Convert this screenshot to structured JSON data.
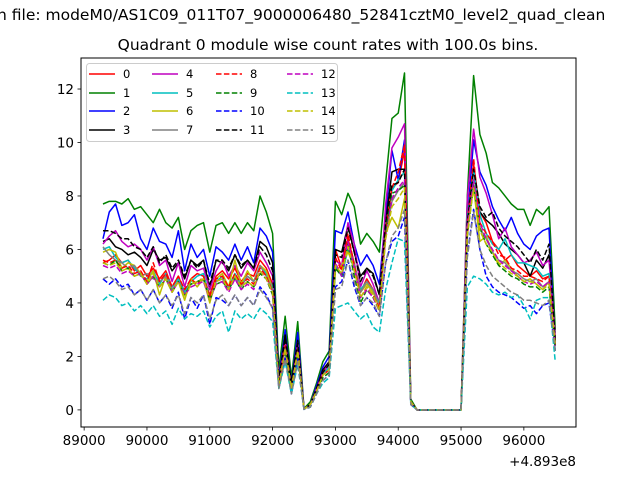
{
  "chart_data": {
    "type": "line",
    "title_line1": "n file: modeM0/AS1C09_011T07_9000006480_52841cztM0_level2_quad_clean",
    "title": "Quadrant 0 module wise count rates with 100.0s bins.",
    "xlabel": "",
    "ylabel": "",
    "x_offset_label": "+4.893e8",
    "x_start": 89300,
    "x_step": 100,
    "xlim": [
      88950,
      96830
    ],
    "ylim": [
      -0.64,
      13.16
    ],
    "xticks": [
      89000,
      90000,
      91000,
      92000,
      93000,
      94000,
      95000,
      96000
    ],
    "yticks": [
      0,
      2,
      4,
      6,
      8,
      10,
      12
    ],
    "grid": false,
    "legend_placement": "top-left",
    "legend_columns": 4,
    "series": [
      {
        "name": "0",
        "color": "#ff0000",
        "dash": false,
        "values": [
          5.5,
          5.6,
          5.8,
          5.5,
          5.6,
          5.2,
          5.4,
          5.0,
          5.3,
          4.9,
          5.2,
          4.6,
          5.0,
          4.4,
          4.9,
          5.1,
          5.0,
          4.3,
          5.0,
          5.2,
          4.9,
          5.3,
          4.8,
          5.1,
          5.0,
          5.6,
          5.3,
          4.7,
          1.0,
          2.6,
          0.9,
          2.4,
          0.03,
          0.2,
          0.8,
          1.4,
          1.7,
          6.0,
          5.3,
          6.4,
          5.5,
          4.4,
          4.9,
          4.5,
          4.0,
          6.5,
          8.3,
          8.5,
          9.7,
          0.3,
          0,
          0,
          0,
          0,
          0,
          0,
          0,
          0,
          6.5,
          9.2,
          7.4,
          7.0,
          6.3,
          6.0,
          5.6,
          5.8,
          5.4,
          5.2,
          5.0,
          5.2,
          4.9,
          5.0,
          2.5
        ]
      },
      {
        "name": "1",
        "color": "#008000",
        "dash": false,
        "values": [
          7.7,
          7.8,
          7.8,
          7.7,
          7.9,
          7.5,
          7.6,
          7.3,
          7.0,
          7.5,
          7.0,
          6.8,
          7.2,
          6.0,
          6.7,
          6.9,
          7.0,
          5.9,
          6.9,
          7.0,
          6.6,
          7.0,
          6.6,
          7.0,
          6.7,
          8.0,
          7.4,
          6.6,
          1.5,
          3.5,
          1.2,
          3.3,
          0.05,
          0.3,
          1.0,
          1.8,
          2.2,
          7.8,
          7.3,
          8.1,
          7.6,
          6.2,
          6.6,
          6.3,
          5.9,
          8.5,
          10.9,
          11.1,
          12.6,
          0.4,
          0,
          0,
          0,
          0,
          0,
          0,
          0,
          0,
          8.0,
          12.5,
          10.3,
          9.6,
          8.5,
          8.3,
          8.0,
          7.7,
          7.5,
          7.5,
          6.9,
          7.5,
          7.3,
          7.6,
          3.0
        ]
      },
      {
        "name": "2",
        "color": "#0000ff",
        "dash": false,
        "values": [
          6.4,
          7.4,
          7.7,
          6.9,
          7.0,
          7.3,
          6.4,
          6.0,
          6.8,
          6.3,
          6.2,
          5.7,
          6.7,
          5.2,
          6.2,
          5.7,
          6.0,
          5.0,
          6.1,
          5.9,
          5.6,
          6.2,
          5.6,
          6.1,
          5.5,
          6.8,
          6.5,
          5.9,
          1.2,
          3.0,
          1.0,
          2.9,
          0.04,
          0.2,
          0.9,
          1.6,
          2.0,
          6.7,
          6.6,
          7.4,
          6.2,
          5.4,
          5.8,
          5.4,
          4.7,
          7.3,
          9.7,
          8.6,
          10.1,
          0.3,
          0,
          0,
          0,
          0,
          0,
          0,
          0,
          0,
          7.1,
          10.1,
          8.9,
          8.4,
          7.6,
          7.1,
          6.7,
          7.2,
          6.6,
          6.2,
          6.0,
          6.5,
          6.7,
          6.8,
          2.4
        ]
      },
      {
        "name": "3",
        "color": "#000000",
        "dash": false,
        "values": [
          6.3,
          6.4,
          6.1,
          6.0,
          5.8,
          5.9,
          5.7,
          5.4,
          6.0,
          5.6,
          5.7,
          5.2,
          5.5,
          4.9,
          5.6,
          5.4,
          5.6,
          4.5,
          5.6,
          5.5,
          5.2,
          5.8,
          5.3,
          5.6,
          5.3,
          6.3,
          6.1,
          5.5,
          1.1,
          2.8,
          1.0,
          2.6,
          0.03,
          0.2,
          0.8,
          1.5,
          1.8,
          6.0,
          5.9,
          6.9,
          5.9,
          5.0,
          5.3,
          5.1,
          4.3,
          7.0,
          8.9,
          9.0,
          9.0,
          0.3,
          0,
          0,
          0,
          0,
          0,
          0,
          0,
          0,
          6.8,
          9.0,
          7.4,
          7.1,
          6.9,
          6.6,
          6.2,
          6.0,
          5.8,
          5.5,
          5.0,
          5.6,
          5.3,
          5.8,
          2.6
        ]
      },
      {
        "name": "4",
        "color": "#bf00bf",
        "dash": false,
        "values": [
          6.2,
          6.5,
          6.7,
          6.3,
          6.1,
          6.2,
          6.0,
          5.6,
          6.1,
          5.4,
          5.6,
          4.8,
          5.5,
          4.6,
          5.4,
          5.2,
          5.3,
          4.5,
          5.2,
          5.6,
          5.0,
          5.4,
          5.0,
          5.5,
          5.2,
          5.9,
          5.5,
          5.0,
          1.1,
          2.6,
          0.8,
          2.5,
          0.03,
          0.2,
          0.8,
          1.4,
          1.7,
          5.6,
          5.4,
          7.0,
          6.2,
          4.6,
          5.2,
          4.7,
          4.0,
          7.7,
          9.8,
          10.2,
          10.7,
          0.3,
          0,
          0,
          0,
          0,
          0,
          0,
          0,
          0,
          7.9,
          10.5,
          8.7,
          8.1,
          7.3,
          6.4,
          6.8,
          6.1,
          5.8,
          5.5,
          5.6,
          5.9,
          5.4,
          5.6,
          2.8
        ]
      },
      {
        "name": "5",
        "color": "#00bfbf",
        "dash": false,
        "values": [
          6.0,
          6.1,
          5.7,
          5.5,
          5.6,
          5.3,
          5.0,
          4.9,
          5.2,
          4.7,
          5.1,
          4.6,
          4.9,
          4.4,
          4.8,
          5.0,
          5.1,
          4.2,
          4.8,
          5.0,
          4.6,
          5.1,
          4.7,
          5.0,
          4.8,
          5.4,
          5.1,
          4.6,
          1.0,
          2.4,
          0.8,
          2.3,
          0.03,
          0.2,
          0.7,
          1.3,
          1.6,
          5.4,
          5.0,
          6.0,
          5.2,
          4.5,
          4.8,
          4.4,
          4.0,
          6.9,
          8.2,
          8.6,
          8.9,
          0.3,
          0,
          0,
          0,
          0,
          0,
          0,
          0,
          0,
          7.2,
          9.0,
          7.3,
          6.6,
          6.2,
          6.0,
          6.4,
          5.8,
          5.5,
          5.5,
          5.4,
          5.3,
          5.0,
          5.1,
          2.2
        ]
      },
      {
        "name": "6",
        "color": "#bfbf00",
        "dash": false,
        "values": [
          5.9,
          6.0,
          5.9,
          5.3,
          5.5,
          5.4,
          5.1,
          4.8,
          5.2,
          4.3,
          5.0,
          4.5,
          4.8,
          4.1,
          4.9,
          4.6,
          4.9,
          4.0,
          4.9,
          5.1,
          4.6,
          5.6,
          4.7,
          5.2,
          4.8,
          5.4,
          5.2,
          4.5,
          1.0,
          2.3,
          0.8,
          2.2,
          0.03,
          0.2,
          0.7,
          1.3,
          1.5,
          5.2,
          5.4,
          5.9,
          5.4,
          4.4,
          4.7,
          4.4,
          3.8,
          6.6,
          7.2,
          6.8,
          7.9,
          0.3,
          0,
          0,
          0,
          0,
          0,
          0,
          0,
          0,
          6.8,
          8.3,
          6.3,
          6.5,
          5.9,
          5.4,
          5.6,
          5.3,
          5.0,
          4.8,
          4.9,
          4.7,
          4.5,
          4.8,
          2.6
        ]
      },
      {
        "name": "7",
        "color": "#808080",
        "dash": false,
        "values": [
          6.1,
          5.8,
          5.6,
          5.5,
          5.3,
          5.4,
          5.0,
          5.1,
          4.9,
          4.8,
          5.0,
          4.5,
          4.8,
          4.3,
          4.7,
          4.8,
          4.9,
          4.2,
          4.8,
          4.9,
          4.6,
          5.0,
          4.6,
          5.0,
          4.8,
          5.4,
          5.0,
          4.5,
          0.9,
          2.3,
          0.8,
          2.2,
          0.03,
          0.2,
          0.7,
          1.3,
          1.5,
          5.3,
          5.1,
          6.2,
          5.5,
          4.4,
          4.8,
          4.5,
          3.9,
          6.5,
          7.8,
          8.2,
          8.5,
          0.3,
          0,
          0,
          0,
          0,
          0,
          0,
          0,
          0,
          6.9,
          8.5,
          6.8,
          6.4,
          5.9,
          5.6,
          5.5,
          5.2,
          5.1,
          4.9,
          4.8,
          4.9,
          4.6,
          4.8,
          2.5
        ]
      },
      {
        "name": "8",
        "color": "#ff0000",
        "dash": true,
        "values": [
          5.6,
          5.5,
          5.6,
          5.3,
          5.4,
          5.1,
          5.2,
          4.8,
          5.5,
          4.8,
          5.1,
          4.6,
          5.0,
          4.5,
          4.9,
          4.7,
          5.0,
          4.2,
          4.9,
          5.0,
          4.6,
          5.1,
          4.7,
          4.9,
          4.7,
          5.3,
          5.0,
          4.4,
          1.0,
          2.4,
          0.8,
          2.3,
          0.03,
          0.2,
          0.7,
          1.3,
          1.5,
          5.7,
          5.2,
          6.6,
          5.4,
          4.2,
          4.6,
          4.3,
          3.8,
          6.8,
          8.3,
          8.9,
          9.9,
          0.3,
          0,
          0,
          0,
          0,
          0,
          0,
          0,
          0,
          7.0,
          9.4,
          7.0,
          6.6,
          6.3,
          5.8,
          5.7,
          5.3,
          5.2,
          5.0,
          5.0,
          4.9,
          4.8,
          5.0,
          2.4
        ]
      },
      {
        "name": "9",
        "color": "#008000",
        "dash": true,
        "values": [
          5.5,
          5.4,
          5.6,
          5.2,
          5.3,
          5.0,
          5.1,
          4.7,
          5.0,
          4.6,
          4.9,
          4.4,
          4.8,
          4.3,
          4.7,
          4.8,
          4.9,
          4.1,
          4.7,
          4.8,
          4.5,
          4.9,
          4.5,
          4.8,
          4.6,
          5.1,
          4.9,
          4.3,
          0.9,
          2.2,
          0.8,
          2.1,
          0.03,
          0.2,
          0.7,
          1.2,
          1.4,
          5.3,
          5.0,
          6.2,
          5.0,
          4.0,
          4.5,
          4.2,
          3.7,
          6.6,
          8.1,
          8.2,
          8.4,
          0.3,
          0,
          0,
          0,
          0,
          0,
          0,
          0,
          0,
          6.5,
          8.4,
          6.8,
          6.2,
          5.8,
          5.4,
          5.2,
          5.0,
          4.9,
          4.7,
          4.6,
          4.6,
          4.4,
          4.6,
          2.3
        ]
      },
      {
        "name": "10",
        "color": "#0000ff",
        "dash": true,
        "values": [
          4.9,
          4.7,
          4.9,
          4.6,
          4.7,
          4.3,
          4.5,
          4.1,
          4.5,
          4.0,
          4.3,
          3.8,
          4.4,
          3.4,
          4.2,
          3.8,
          4.3,
          3.2,
          4.2,
          4.1,
          3.9,
          4.3,
          3.9,
          4.2,
          3.9,
          4.6,
          4.3,
          3.8,
          0.8,
          2.0,
          0.6,
          1.9,
          0.02,
          0.1,
          0.6,
          1.1,
          1.3,
          4.6,
          4.8,
          5.6,
          4.6,
          3.9,
          4.2,
          3.9,
          3.5,
          5.5,
          6.3,
          6.5,
          7.2,
          0.2,
          0,
          0,
          0,
          0,
          0,
          0,
          0,
          0,
          5.8,
          7.5,
          6.0,
          5.0,
          4.6,
          4.4,
          4.3,
          4.2,
          4.0,
          3.8,
          3.9,
          3.6,
          3.9,
          4.0,
          2.2
        ]
      },
      {
        "name": "11",
        "color": "#000000",
        "dash": true,
        "values": [
          6.7,
          6.7,
          6.6,
          6.4,
          6.4,
          6.1,
          6.0,
          5.7,
          6.1,
          5.5,
          5.8,
          5.3,
          5.6,
          5.0,
          5.6,
          5.3,
          5.6,
          4.7,
          5.6,
          5.6,
          5.3,
          5.8,
          5.4,
          5.6,
          5.3,
          6.1,
          5.8,
          5.2,
          1.1,
          2.7,
          0.9,
          2.5,
          0.03,
          0.2,
          0.8,
          1.4,
          1.7,
          5.8,
          5.7,
          6.8,
          5.9,
          4.8,
          5.3,
          5.0,
          4.3,
          7.0,
          8.4,
          8.5,
          9.0,
          0.3,
          0,
          0,
          0,
          0,
          0,
          0,
          0,
          0,
          7.0,
          9.0,
          7.6,
          7.2,
          7.4,
          6.8,
          6.5,
          6.3,
          6.1,
          5.8,
          5.5,
          6.0,
          5.6,
          6.2,
          2.6
        ]
      },
      {
        "name": "12",
        "color": "#bf00bf",
        "dash": true,
        "values": [
          5.4,
          5.3,
          5.4,
          5.1,
          5.2,
          5.0,
          5.1,
          4.7,
          5.0,
          4.6,
          4.9,
          4.4,
          4.8,
          4.3,
          4.6,
          4.7,
          4.8,
          4.1,
          4.7,
          4.8,
          4.4,
          4.9,
          4.5,
          4.7,
          4.5,
          5.2,
          4.9,
          4.4,
          0.9,
          2.3,
          0.8,
          2.2,
          0.03,
          0.2,
          0.7,
          1.3,
          1.5,
          5.5,
          5.0,
          6.3,
          5.3,
          4.2,
          4.5,
          4.2,
          3.7,
          6.4,
          7.9,
          8.3,
          8.6,
          0.3,
          0,
          0,
          0,
          0,
          0,
          0,
          0,
          0,
          6.8,
          8.6,
          7.0,
          6.4,
          6.0,
          5.6,
          5.4,
          5.2,
          5.0,
          4.8,
          4.7,
          4.8,
          4.6,
          4.8,
          2.4
        ]
      },
      {
        "name": "13",
        "color": "#00bfbf",
        "dash": true,
        "values": [
          4.1,
          4.3,
          4.2,
          3.9,
          4.0,
          3.7,
          3.9,
          3.6,
          3.9,
          3.5,
          3.7,
          3.2,
          3.8,
          3.4,
          3.6,
          3.5,
          3.7,
          3.1,
          3.5,
          3.7,
          2.9,
          3.7,
          3.4,
          3.6,
          3.4,
          3.8,
          3.6,
          3.3,
          0.8,
          1.8,
          0.6,
          1.7,
          0.02,
          0.1,
          0.6,
          1.0,
          1.2,
          3.8,
          3.9,
          4.0,
          3.7,
          3.4,
          3.6,
          3.1,
          2.9,
          4.5,
          5.5,
          6.4,
          6.3,
          0.2,
          0,
          0,
          0,
          0,
          0,
          0,
          0,
          0,
          4.6,
          5.0,
          4.9,
          4.7,
          4.4,
          4.3,
          4.4,
          4.2,
          4.3,
          3.9,
          3.4,
          4.1,
          4.2,
          4.2,
          1.8
        ]
      },
      {
        "name": "14",
        "color": "#bfbf00",
        "dash": true,
        "values": [
          5.5,
          5.4,
          5.5,
          5.2,
          5.3,
          5.0,
          5.1,
          4.7,
          5.1,
          4.6,
          4.9,
          4.4,
          4.8,
          4.2,
          4.7,
          4.8,
          4.9,
          4.1,
          4.8,
          4.9,
          4.5,
          5.0,
          4.6,
          4.8,
          4.6,
          5.2,
          4.9,
          4.4,
          0.9,
          2.3,
          0.8,
          2.2,
          0.03,
          0.2,
          0.7,
          1.3,
          1.5,
          5.4,
          5.1,
          6.1,
          5.2,
          4.2,
          4.6,
          4.3,
          3.7,
          6.4,
          7.6,
          7.9,
          8.3,
          0.3,
          0,
          0,
          0,
          0,
          0,
          0,
          0,
          0,
          6.6,
          8.3,
          6.7,
          6.2,
          5.9,
          5.5,
          5.3,
          5.1,
          5.0,
          4.8,
          4.8,
          4.7,
          4.5,
          4.7,
          2.4
        ]
      },
      {
        "name": "15",
        "color": "#808080",
        "dash": true,
        "values": [
          4.9,
          5.0,
          4.8,
          4.5,
          4.6,
          4.3,
          4.5,
          4.1,
          4.5,
          4.0,
          4.3,
          3.9,
          4.3,
          3.6,
          4.2,
          4.0,
          4.3,
          3.4,
          4.1,
          4.3,
          3.9,
          4.3,
          3.9,
          4.2,
          3.9,
          4.5,
          4.2,
          3.8,
          0.8,
          1.9,
          0.6,
          1.8,
          0.02,
          0.1,
          0.6,
          1.1,
          1.3,
          4.5,
          4.6,
          5.6,
          4.8,
          3.9,
          4.2,
          4.0,
          3.5,
          5.5,
          6.5,
          6.8,
          7.5,
          0.2,
          0,
          0,
          0,
          0,
          0,
          0,
          0,
          0,
          5.7,
          7.4,
          6.0,
          5.4,
          5.0,
          4.8,
          4.6,
          4.4,
          4.3,
          4.1,
          4.1,
          4.0,
          3.9,
          4.1,
          2.2
        ]
      }
    ]
  }
}
